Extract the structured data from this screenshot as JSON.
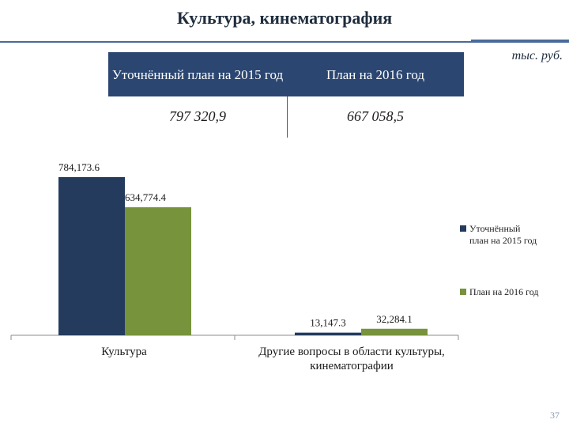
{
  "title": "Культура, кинематография",
  "units": "тыс. руб.",
  "summary": {
    "col1_header": "Уточнённый план на 2015 год",
    "col2_header": "План на 2016 год",
    "col1_value": "797 320,9",
    "col2_value": "667 058,5"
  },
  "colors": {
    "plan2015": "#243b5e",
    "plan2016": "#77933c",
    "header_bg": "#2b4670"
  },
  "chart_data": {
    "type": "bar",
    "categories": [
      "Культура",
      "Другие вопросы в области культуры, кинематографии"
    ],
    "category_lines": [
      [
        "Культура"
      ],
      [
        "Другие вопросы в области культуры,",
        "кинематографии"
      ]
    ],
    "series": [
      {
        "name": "Уточнённый план на 2015 год",
        "values": [
          784173.6,
          13147.3
        ],
        "labels": [
          "784,173.6",
          "13,147.3"
        ],
        "color": "#243b5e"
      },
      {
        "name": "План на 2016 год",
        "values": [
          634774.4,
          32284.1
        ],
        "labels": [
          "634,774.4",
          "32,284.1"
        ],
        "color": "#77933c"
      }
    ],
    "legend_lines": [
      [
        "Уточнённый",
        "план на 2015 год"
      ],
      [
        "План на 2016 год"
      ]
    ],
    "legend_position": "right",
    "grid": false,
    "ylim": [
      0,
      784173.6
    ]
  },
  "page_number": "37"
}
